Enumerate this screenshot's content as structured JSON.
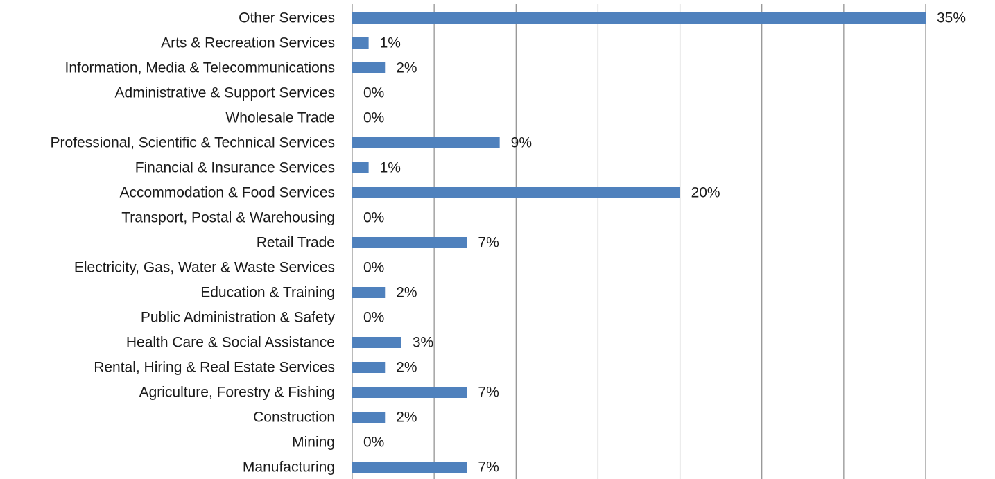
{
  "chart_data": {
    "type": "bar",
    "orientation": "horizontal",
    "categories": [
      "Other Services",
      "Arts & Recreation Services",
      "Information, Media & Telecommunications",
      "Administrative & Support Services",
      "Wholesale Trade",
      "Professional, Scientific & Technical Services",
      "Financial & Insurance Services",
      "Accommodation & Food Services",
      "Transport, Postal & Warehousing",
      "Retail Trade",
      "Electricity, Gas, Water & Waste Services",
      "Education & Training",
      "Public Administration & Safety",
      "Health Care & Social Assistance",
      "Rental, Hiring & Real Estate Services",
      "Agriculture, Forestry & Fishing",
      "Construction",
      "Mining",
      "Manufacturing"
    ],
    "values": [
      35,
      1,
      2,
      0,
      0,
      9,
      1,
      20,
      0,
      7,
      0,
      2,
      0,
      3,
      2,
      7,
      2,
      0,
      7
    ],
    "value_labels": [
      "35%",
      "1%",
      "2%",
      "0%",
      "0%",
      "9%",
      "1%",
      "20%",
      "0%",
      "7%",
      "0%",
      "2%",
      "0%",
      "3%",
      "2%",
      "7%",
      "2%",
      "0%",
      "7%"
    ],
    "xlim": [
      0,
      35
    ],
    "x_gridlines": [
      0,
      5,
      10,
      15,
      20,
      25,
      30,
      35
    ],
    "grid": true,
    "legend": "none",
    "bar_color": "#4f81bd",
    "grid_color": "#8c8c8c",
    "text_color": "#1a1a1a"
  }
}
